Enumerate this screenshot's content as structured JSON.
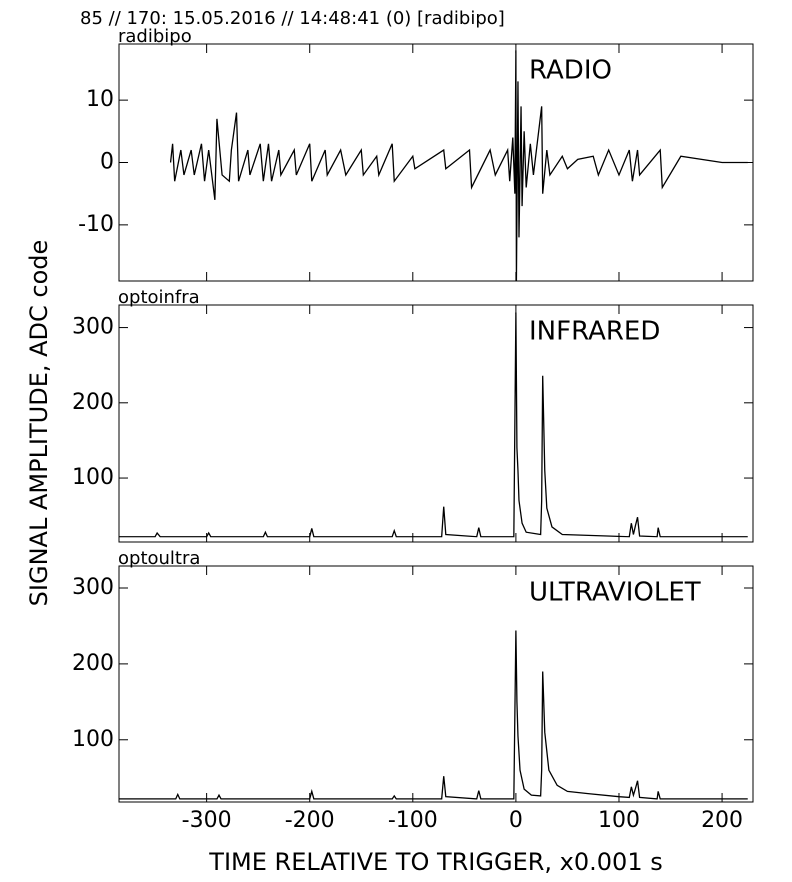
{
  "title": "85 // 170:   15.05.2016 // 14:48:41 (0)  [radibipo]",
  "xlabel": "TIME RELATIVE TO TRIGGER,   x0.001 s",
  "ylabel": "SIGNAL AMPLITUDE,  ADC code",
  "chart_data": [
    {
      "type": "line",
      "panel_label": "radibipo",
      "annotation": "RADIO",
      "color": "#000000",
      "xlim": [
        -385,
        230
      ],
      "ylim": [
        -19,
        19
      ],
      "yticks": [
        -10,
        0,
        10
      ],
      "x": [
        -335,
        -333,
        -331,
        -325,
        -322,
        -315,
        -312,
        -305,
        -302,
        -298,
        -292,
        -290,
        -285,
        -278,
        -276,
        -271,
        -269,
        -260,
        -258,
        -248,
        -245,
        -240,
        -237,
        -230,
        -228,
        -215,
        -213,
        -200,
        -198,
        -185,
        -183,
        -170,
        -165,
        -150,
        -148,
        -135,
        -133,
        -120,
        -118,
        -100,
        -98,
        -70,
        -68,
        -45,
        -43,
        -25,
        -20,
        -8,
        -6,
        -3,
        -1,
        0,
        0.5,
        2,
        3,
        5,
        6,
        8,
        10,
        14,
        17,
        25,
        26,
        30,
        33,
        45,
        50,
        60,
        75,
        80,
        90,
        100,
        110,
        113,
        118,
        120,
        140,
        142,
        160,
        200,
        225
      ],
      "values": [
        0,
        3,
        -3,
        2,
        -2,
        2,
        -2,
        3,
        -3,
        2,
        -6,
        7,
        -2,
        -3,
        2,
        8,
        -3,
        2,
        -2,
        3,
        -3,
        3,
        -3,
        2,
        -2,
        2,
        -2,
        3,
        -3,
        2,
        -2,
        2,
        -2,
        2,
        -2,
        1,
        -2,
        3,
        -3,
        1,
        -1,
        2,
        -1,
        2,
        -4,
        2,
        -2,
        2,
        -3,
        4,
        -5,
        18,
        -19,
        13,
        -12,
        9,
        -7,
        5,
        -4,
        3,
        -2,
        9,
        -5,
        2,
        -2,
        1,
        -1,
        0.5,
        1,
        -2,
        2,
        -2,
        2,
        -3,
        2,
        -2,
        2,
        -4,
        1,
        0,
        0
      ]
    },
    {
      "type": "line",
      "panel_label": "optoinfra",
      "annotation": "INFRARED",
      "color": "#000000",
      "xlim": [
        -385,
        230
      ],
      "ylim": [
        15,
        330
      ],
      "yticks": [
        100,
        200,
        300
      ],
      "x": [
        -385,
        -350,
        -348,
        -345,
        -300,
        -298,
        -296,
        -245,
        -243,
        -241,
        -200,
        -198,
        -196,
        -120,
        -118,
        -116,
        -72,
        -70,
        -68,
        -38,
        -36,
        -34,
        -2,
        0,
        1,
        2,
        3,
        6,
        10,
        24,
        25,
        26,
        28,
        30,
        35,
        45,
        110,
        112,
        114,
        116,
        118,
        120,
        137,
        138,
        140,
        225
      ],
      "values": [
        22,
        22,
        27,
        22,
        22,
        27,
        22,
        22,
        28,
        22,
        22,
        33,
        22,
        22,
        30,
        22,
        22,
        62,
        25,
        22,
        34,
        22,
        22,
        320,
        140,
        110,
        70,
        40,
        28,
        25,
        70,
        236,
        110,
        60,
        35,
        25,
        22,
        40,
        25,
        37,
        48,
        23,
        22,
        34,
        22,
        22
      ]
    },
    {
      "type": "line",
      "panel_label": "optoultra",
      "annotation": "ULTRAVIOLET",
      "color": "#000000",
      "xlim": [
        -385,
        230
      ],
      "ylim": [
        18,
        329
      ],
      "yticks": [
        100,
        200,
        300
      ],
      "xticks": [
        -300,
        -200,
        -100,
        0,
        100,
        200
      ],
      "x": [
        -385,
        -330,
        -328,
        -326,
        -290,
        -288,
        -286,
        -200,
        -198,
        -196,
        -120,
        -118,
        -116,
        -72,
        -70,
        -68,
        -38,
        -36,
        -34,
        -2,
        0,
        1,
        2,
        4,
        8,
        15,
        24,
        25,
        26,
        28,
        32,
        40,
        50,
        70,
        100,
        110,
        112,
        114,
        116,
        118,
        120,
        137,
        138,
        140,
        225
      ],
      "values": [
        22,
        22,
        28,
        22,
        22,
        27,
        22,
        22,
        32,
        22,
        22,
        26,
        22,
        22,
        52,
        25,
        22,
        33,
        22,
        22,
        244,
        150,
        105,
        60,
        35,
        27,
        26,
        60,
        190,
        110,
        60,
        40,
        32,
        29,
        25,
        24,
        38,
        27,
        36,
        46,
        24,
        22,
        32,
        22,
        22
      ]
    }
  ]
}
